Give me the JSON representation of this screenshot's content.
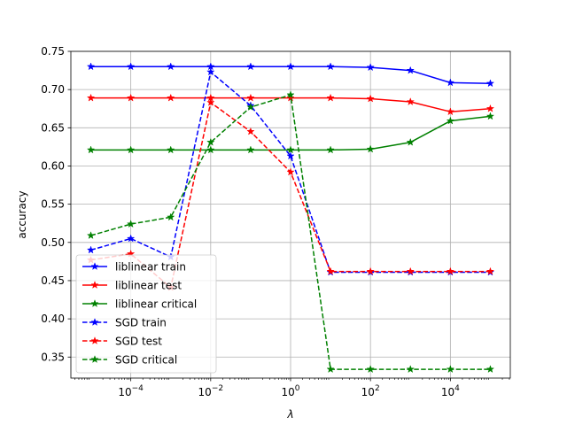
{
  "chart_data": {
    "type": "line",
    "title": "",
    "xlabel": "λ",
    "ylabel": "accuracy",
    "xscale": "log",
    "xlim_log10": [
      -5.5,
      5.5
    ],
    "ylim": [
      0.3225,
      0.75
    ],
    "grid": true,
    "legend_position": "lower-left",
    "x": [
      1e-05,
      0.0001,
      0.001,
      0.01,
      0.1,
      1,
      10,
      100,
      1000,
      10000,
      100000
    ],
    "x_ticks": [
      {
        "value": 0.0001,
        "base": "10",
        "exp": "−4"
      },
      {
        "value": 0.01,
        "base": "10",
        "exp": "−2"
      },
      {
        "value": 1,
        "base": "10",
        "exp": "0"
      },
      {
        "value": 100,
        "base": "10",
        "exp": "2"
      },
      {
        "value": 10000,
        "base": "10",
        "exp": "4"
      }
    ],
    "y_ticks": [
      "0.35",
      "0.40",
      "0.45",
      "0.50",
      "0.55",
      "0.60",
      "0.65",
      "0.70",
      "0.75"
    ],
    "series": [
      {
        "name": "liblinear train",
        "color": "#0000ff",
        "dash": "solid",
        "values": [
          0.73,
          0.73,
          0.73,
          0.73,
          0.73,
          0.73,
          0.73,
          0.729,
          0.725,
          0.709,
          0.708
        ]
      },
      {
        "name": "liblinear test",
        "color": "#ff0000",
        "dash": "solid",
        "values": [
          0.689,
          0.689,
          0.689,
          0.689,
          0.689,
          0.689,
          0.689,
          0.688,
          0.684,
          0.671,
          0.675
        ]
      },
      {
        "name": "liblinear critical",
        "color": "#008000",
        "dash": "solid",
        "values": [
          0.621,
          0.621,
          0.621,
          0.621,
          0.621,
          0.621,
          0.621,
          0.622,
          0.631,
          0.659,
          0.665
        ]
      },
      {
        "name": "SGD train",
        "color": "#0000ff",
        "dash": "dashed",
        "values": [
          0.49,
          0.505,
          0.481,
          0.723,
          0.679,
          0.613,
          0.461,
          0.461,
          0.461,
          0.461,
          0.461
        ]
      },
      {
        "name": "SGD test",
        "color": "#ff0000",
        "dash": "dashed",
        "values": [
          0.477,
          0.485,
          0.441,
          0.683,
          0.645,
          0.592,
          0.462,
          0.462,
          0.462,
          0.462,
          0.462
        ]
      },
      {
        "name": "SGD critical",
        "color": "#008000",
        "dash": "dashed",
        "values": [
          0.509,
          0.524,
          0.533,
          0.631,
          0.677,
          0.693,
          0.334,
          0.334,
          0.334,
          0.334,
          0.334
        ]
      }
    ]
  }
}
